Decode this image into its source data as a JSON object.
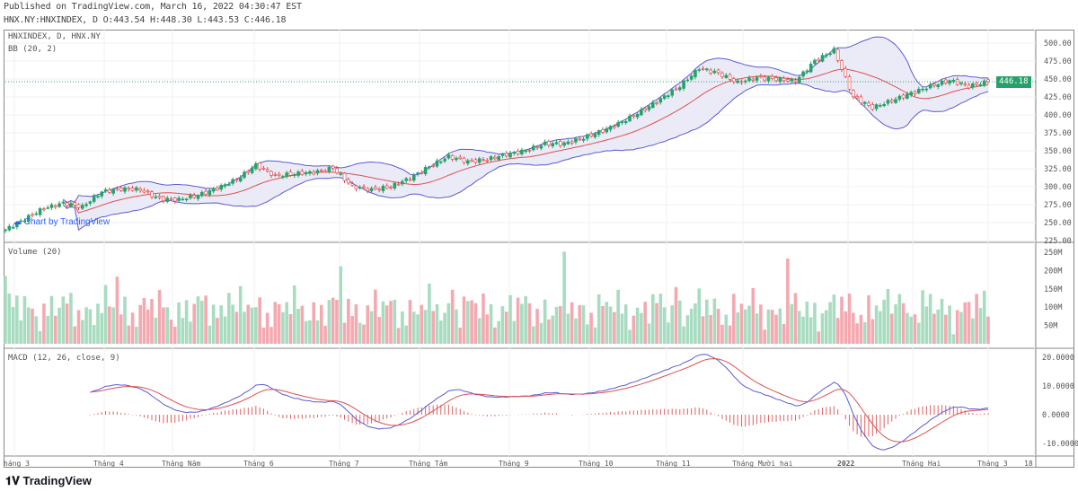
{
  "header": {
    "published": "Published on TradingView.com, March 16, 2022 04:30:47 EST",
    "ohlc": "HNX.NY:HNXINDEX, D O:443.54 H:448.30 L:443.53 C:446.18"
  },
  "legend": {
    "main": "HNXINDEX, D, HNX.NY",
    "bb": "BB (20, 2)",
    "volume": "Volume (20)",
    "macd": "MACD (12, 26, close, 9)"
  },
  "last_price": "446.18",
  "watermark": "Chart by TradingView",
  "footer": "TradingView",
  "colors": {
    "up": "#26a269",
    "down": "#e04040",
    "bb_band": "#5b5bd6",
    "bb_fill": "#e6e6f5",
    "basis": "#e05050",
    "macd": "#5b5bd6",
    "signal": "#e05050"
  },
  "chart_data": {
    "type": "candlestick",
    "price_axis": [
      "500.00",
      "475.00",
      "450.00",
      "425.00",
      "400.00",
      "375.00",
      "350.00",
      "325.00",
      "300.00",
      "275.00",
      "250.00",
      "225.00"
    ],
    "price_range": [
      225,
      510
    ],
    "volume_axis": [
      "250M",
      "200M",
      "150M",
      "100M",
      "50M"
    ],
    "volume_range_M": [
      0,
      265
    ],
    "macd_axis": [
      "20.0000",
      "10.0000",
      "0.0000",
      "-10.0000"
    ],
    "macd_range": [
      -14,
      22
    ],
    "time_axis": [
      "háng 3",
      "Tháng 4",
      "Tháng Năm",
      "Tháng 6",
      "Tháng 7",
      "Tháng Tám",
      "Tháng 9",
      "Tháng 10",
      "Tháng 11",
      "Tháng Mười hai",
      "2022",
      "Tháng Hai",
      "Tháng 3",
      "18"
    ],
    "weekly_close": [
      240,
      255,
      270,
      277,
      272,
      293,
      297,
      296,
      283,
      282,
      288,
      298,
      310,
      330,
      315,
      318,
      320,
      326,
      300,
      296,
      300,
      312,
      328,
      342,
      335,
      338,
      345,
      350,
      360,
      360,
      368,
      378,
      390,
      405,
      422,
      440,
      465,
      458,
      445,
      452,
      450,
      447,
      475,
      490,
      425,
      410,
      420,
      430,
      440,
      448,
      440,
      446.18
    ]
  }
}
